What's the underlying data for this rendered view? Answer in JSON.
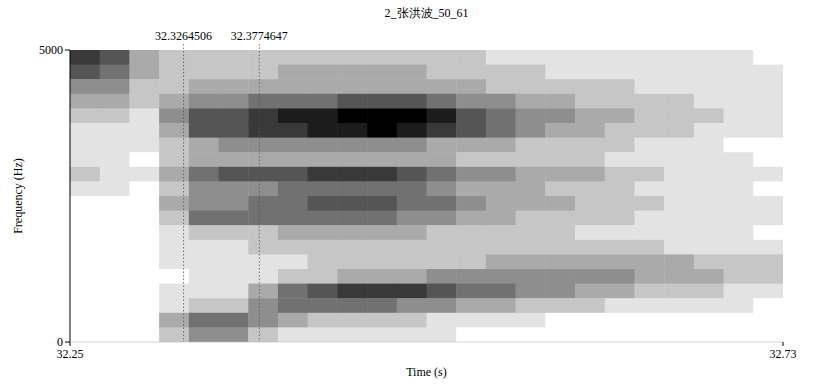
{
  "chart_data": {
    "type": "heatmap",
    "title": "2_张洪波_50_61",
    "x_label": "Time (s)",
    "y_label": "Frequency (Hz)",
    "xlim": [
      32.25,
      32.73
    ],
    "ylim": [
      0,
      5000
    ],
    "xticks": [
      32.25,
      32.73
    ],
    "yticks": [
      0,
      5000
    ],
    "boundaries": [
      32.3264506,
      32.3774647
    ],
    "color": "#000000",
    "zlim": [
      0,
      9
    ],
    "x": [
      32.26,
      32.28,
      32.3,
      32.32,
      32.34,
      32.36,
      32.38,
      32.4,
      32.42,
      32.44,
      32.46,
      32.48,
      32.5,
      32.52,
      32.54,
      32.56,
      32.58,
      32.6,
      32.62,
      32.64,
      32.66,
      32.68,
      32.7,
      32.72
    ],
    "y": [
      4875,
      4625,
      4375,
      4125,
      3875,
      3625,
      3375,
      3125,
      2875,
      2625,
      2375,
      2125,
      1875,
      1625,
      1375,
      1125,
      875,
      625,
      375,
      125
    ],
    "values": [
      [
        7,
        6,
        4,
        3,
        2,
        1,
        1,
        1,
        2,
        1,
        0,
        0,
        0,
        0,
        0,
        0,
        0,
        0,
        0,
        0
      ],
      [
        6,
        5,
        4,
        3,
        2,
        1,
        1,
        1,
        1,
        1,
        0,
        0,
        0,
        0,
        0,
        0,
        0,
        0,
        0,
        0
      ],
      [
        3,
        3,
        2,
        2,
        1,
        1,
        1,
        0,
        1,
        0,
        0,
        0,
        0,
        0,
        0,
        0,
        0,
        0,
        0,
        0
      ],
      [
        2,
        2,
        2,
        3,
        4,
        3,
        2,
        2,
        3,
        2,
        3,
        2,
        1,
        1,
        1,
        0,
        1,
        1,
        3,
        2
      ],
      [
        2,
        2,
        3,
        4,
        6,
        6,
        3,
        3,
        5,
        4,
        4,
        5,
        2,
        1,
        1,
        1,
        1,
        2,
        5,
        4
      ],
      [
        2,
        2,
        3,
        4,
        6,
        6,
        4,
        3,
        6,
        4,
        4,
        5,
        2,
        1,
        1,
        1,
        1,
        2,
        5,
        4
      ],
      [
        2,
        2,
        3,
        5,
        7,
        7,
        4,
        3,
        6,
        4,
        5,
        5,
        2,
        2,
        1,
        1,
        3,
        4,
        4,
        2
      ],
      [
        2,
        3,
        3,
        5,
        8,
        7,
        4,
        3,
        6,
        5,
        5,
        5,
        3,
        2,
        1,
        2,
        5,
        5,
        3,
        1
      ],
      [
        2,
        3,
        3,
        5,
        8,
        8,
        4,
        3,
        7,
        5,
        6,
        5,
        3,
        2,
        2,
        2,
        6,
        5,
        2,
        1
      ],
      [
        2,
        3,
        3,
        6,
        9,
        8,
        4,
        3,
        7,
        5,
        6,
        5,
        3,
        2,
        2,
        3,
        7,
        5,
        2,
        1
      ],
      [
        2,
        3,
        3,
        6,
        9,
        9,
        4,
        3,
        7,
        5,
        6,
        5,
        3,
        2,
        2,
        3,
        7,
        5,
        2,
        1
      ],
      [
        2,
        3,
        3,
        6,
        9,
        8,
        4,
        3,
        6,
        5,
        5,
        4,
        3,
        2,
        2,
        3,
        7,
        4,
        2,
        1
      ],
      [
        2,
        2,
        3,
        5,
        8,
        7,
        3,
        3,
        5,
        4,
        5,
        4,
        2,
        2,
        2,
        4,
        6,
        4,
        1,
        1
      ],
      [
        2,
        2,
        3,
        4,
        6,
        6,
        3,
        2,
        4,
        3,
        4,
        3,
        2,
        2,
        2,
        4,
        5,
        3,
        1,
        0
      ],
      [
        1,
        2,
        2,
        4,
        5,
        5,
        3,
        2,
        4,
        3,
        3,
        3,
        2,
        2,
        3,
        4,
        5,
        3,
        1,
        0
      ],
      [
        1,
        2,
        2,
        3,
        4,
        4,
        2,
        2,
        3,
        3,
        3,
        2,
        2,
        2,
        3,
        4,
        4,
        2,
        1,
        0
      ],
      [
        1,
        1,
        2,
        3,
        4,
        3,
        2,
        2,
        3,
        2,
        3,
        2,
        2,
        2,
        3,
        4,
        4,
        2,
        0,
        0
      ],
      [
        1,
        1,
        2,
        2,
        3,
        3,
        2,
        2,
        3,
        2,
        2,
        2,
        1,
        2,
        3,
        4,
        3,
        2,
        0,
        0
      ],
      [
        1,
        1,
        2,
        2,
        3,
        2,
        2,
        1,
        2,
        2,
        2,
        2,
        1,
        2,
        3,
        4,
        3,
        1,
        0,
        0
      ],
      [
        1,
        1,
        1,
        2,
        2,
        2,
        1,
        1,
        2,
        1,
        2,
        1,
        1,
        2,
        3,
        3,
        2,
        1,
        0,
        0
      ],
      [
        1,
        1,
        1,
        2,
        2,
        2,
        1,
        1,
        1,
        1,
        1,
        1,
        1,
        1,
        3,
        3,
        2,
        1,
        0,
        0
      ],
      [
        1,
        1,
        1,
        1,
        2,
        1,
        1,
        1,
        1,
        1,
        1,
        1,
        1,
        1,
        2,
        3,
        2,
        1,
        0,
        0
      ],
      [
        1,
        1,
        1,
        1,
        1,
        1,
        0,
        1,
        1,
        1,
        1,
        1,
        1,
        1,
        2,
        2,
        1,
        1,
        0,
        0
      ],
      [
        0,
        1,
        1,
        1,
        1,
        1,
        0,
        0,
        1,
        0,
        1,
        1,
        0,
        1,
        2,
        2,
        1,
        0,
        0,
        0
      ]
    ]
  }
}
